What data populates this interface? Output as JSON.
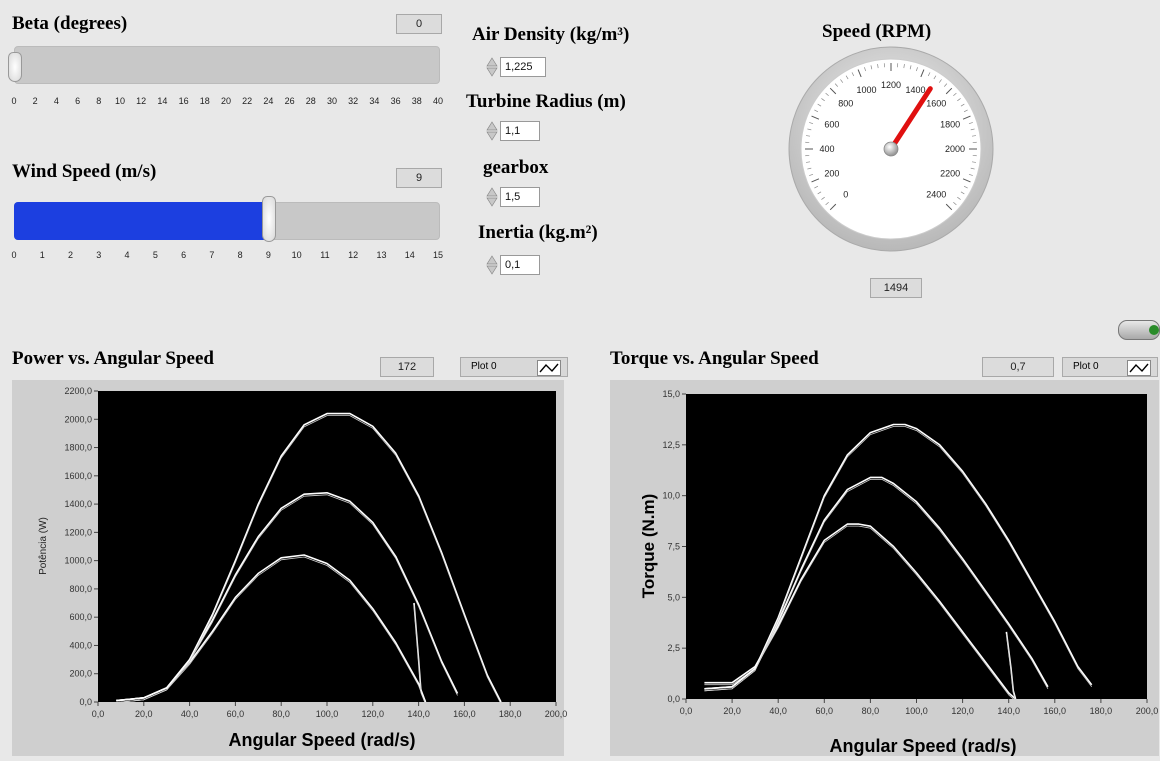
{
  "beta": {
    "label": "Beta (degrees)",
    "value": "0",
    "ticks": [
      "0",
      "2",
      "4",
      "6",
      "8",
      "10",
      "12",
      "14",
      "16",
      "18",
      "20",
      "22",
      "24",
      "26",
      "28",
      "30",
      "32",
      "34",
      "36",
      "38",
      "40"
    ],
    "level_fraction": 0.0
  },
  "wind": {
    "label": "Wind Speed (m/s)",
    "value": "9",
    "ticks": [
      "0",
      "1",
      "2",
      "3",
      "4",
      "5",
      "6",
      "7",
      "8",
      "9",
      "10",
      "11",
      "12",
      "13",
      "14",
      "15"
    ],
    "level_fraction": 0.6
  },
  "params": {
    "air_density": {
      "label": "Air Density (kg/m³)",
      "value": "1,225"
    },
    "turbine_radius": {
      "label": "Turbine Radius (m)",
      "value": "1,1"
    },
    "gearbox": {
      "label": "gearbox",
      "value": "1,5"
    },
    "inertia": {
      "label": "Inertia (kg.m²)",
      "value": "0,1"
    }
  },
  "gauge": {
    "label": "Speed (RPM)",
    "value": "1494",
    "reading": 1494,
    "min": 0,
    "max": 2400,
    "ticks": [
      "0",
      "200",
      "400",
      "600",
      "800",
      "1000",
      "1200",
      "1400",
      "1600",
      "1800",
      "2000",
      "2200",
      "2400"
    ],
    "needle_color": "#e01010"
  },
  "power_graph": {
    "title": "Power vs. Angular Speed",
    "readout": "172",
    "plot_name": "Plot 0",
    "ylabel": "Potência (W)",
    "xlabel": "Angular Speed (rad/s)"
  },
  "torque_graph": {
    "title": "Torque vs. Angular Speed",
    "readout": "0,7",
    "plot_name": "Plot 0",
    "ylabel": "Torque (N.m)",
    "xlabel": "Angular Speed (rad/s)"
  },
  "chart_data": [
    {
      "type": "line",
      "title": "Power vs. Angular Speed",
      "xlabel": "Angular Speed (rad/s)",
      "ylabel": "Potência (W)",
      "xlim": [
        0,
        200
      ],
      "ylim": [
        0,
        2200
      ],
      "xticks": [
        "0,0",
        "20,0",
        "40,0",
        "60,0",
        "80,0",
        "100,0",
        "120,0",
        "140,0",
        "160,0",
        "180,0",
        "200,0"
      ],
      "yticks": [
        "0,0",
        "200,0",
        "400,0",
        "600,0",
        "800,0",
        "1000,0",
        "1200,0",
        "1400,0",
        "1600,0",
        "1800,0",
        "2000,0",
        "2200,0"
      ],
      "series": [
        {
          "x": [
            8,
            20,
            30,
            40,
            50,
            60,
            70,
            80,
            90,
            100,
            110,
            120,
            130,
            140,
            143
          ],
          "y": [
            10,
            30,
            100,
            280,
            500,
            740,
            910,
            1020,
            1040,
            980,
            860,
            660,
            420,
            130,
            0
          ]
        },
        {
          "x": [
            8,
            20,
            30,
            40,
            50,
            60,
            70,
            80,
            90,
            100,
            110,
            120,
            130,
            140,
            150,
            157
          ],
          "y": [
            10,
            30,
            100,
            300,
            580,
            900,
            1170,
            1370,
            1470,
            1480,
            1420,
            1270,
            1030,
            690,
            290,
            60
          ]
        },
        {
          "x": [
            8,
            20,
            30,
            40,
            50,
            60,
            70,
            80,
            90,
            100,
            110,
            120,
            130,
            140,
            150,
            160,
            170,
            176
          ],
          "y": [
            10,
            30,
            100,
            300,
            620,
            1000,
            1400,
            1740,
            1960,
            2040,
            2040,
            1950,
            1760,
            1460,
            1060,
            620,
            190,
            0
          ]
        },
        {
          "x": [
            138,
            140,
            141,
            143
          ],
          "y": [
            700,
            300,
            80,
            0
          ]
        }
      ]
    },
    {
      "type": "line",
      "title": "Torque vs. Angular Speed",
      "xlabel": "Angular Speed (rad/s)",
      "ylabel": "Torque (N.m)",
      "xlim": [
        0,
        200
      ],
      "ylim": [
        0,
        15
      ],
      "xticks": [
        "0,0",
        "20,0",
        "40,0",
        "60,0",
        "80,0",
        "100,0",
        "120,0",
        "140,0",
        "160,0",
        "180,0",
        "200,0"
      ],
      "yticks": [
        "0,0",
        "2,5",
        "5,0",
        "7,5",
        "10,0",
        "12,5",
        "15,0"
      ],
      "series": [
        {
          "x": [
            8,
            20,
            30,
            40,
            50,
            60,
            70,
            75,
            80,
            90,
            100,
            110,
            120,
            130,
            140,
            143
          ],
          "y": [
            0.8,
            0.8,
            1.6,
            3.6,
            5.9,
            7.8,
            8.6,
            8.6,
            8.5,
            7.5,
            6.2,
            4.8,
            3.3,
            1.8,
            0.3,
            0
          ]
        },
        {
          "x": [
            8,
            20,
            30,
            40,
            50,
            60,
            70,
            80,
            85,
            90,
            100,
            110,
            120,
            130,
            140,
            150,
            157
          ],
          "y": [
            0.5,
            0.6,
            1.5,
            3.8,
            6.4,
            8.8,
            10.3,
            10.9,
            10.9,
            10.6,
            9.7,
            8.4,
            6.9,
            5.3,
            3.7,
            2.0,
            0.6
          ]
        },
        {
          "x": [
            8,
            20,
            30,
            40,
            50,
            60,
            70,
            80,
            90,
            95,
            100,
            110,
            120,
            130,
            140,
            150,
            160,
            170,
            176
          ],
          "y": [
            0.5,
            0.6,
            1.5,
            4.0,
            7.0,
            10.0,
            12.0,
            13.1,
            13.5,
            13.5,
            13.3,
            12.5,
            11.2,
            9.6,
            7.8,
            5.8,
            3.8,
            1.6,
            0.7
          ]
        },
        {
          "x": [
            139,
            141,
            142,
            143
          ],
          "y": [
            3.3,
            1.5,
            0.4,
            0
          ]
        }
      ]
    }
  ]
}
